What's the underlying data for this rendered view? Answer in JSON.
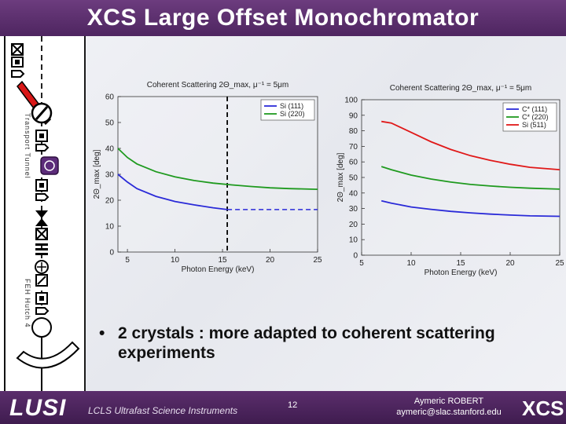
{
  "slide": {
    "title": "XCS Large Offset Monochromator",
    "bullet": "2 crystals : more adapted to coherent scattering experiments",
    "page_number": "12",
    "author_name": "Aymeric ROBERT",
    "author_email": "aymeric@slac.stanford.edu",
    "footer_logo": "LUSI",
    "footer_subtitle": "LCLS Ultrafast Science Instruments",
    "footer_right": "XCS",
    "sidebar_label_top": "Transport Tunnel",
    "sidebar_label_bottom": "FEH Hutch 4"
  },
  "chart_data": [
    {
      "type": "line",
      "title": "Coherent Scattering 2Θ_max, μ⁻¹ = 5μm",
      "xlabel": "Photon Energy (keV)",
      "ylabel": "2Θ_max [deg]",
      "xlim": [
        4,
        25
      ],
      "ylim": [
        0,
        60
      ],
      "xticks": [
        5,
        10,
        15,
        20,
        25
      ],
      "yticks": [
        0,
        10,
        20,
        30,
        40,
        50,
        60
      ],
      "legend_position": "top-right",
      "vline": {
        "x": 15.5,
        "style": "dashed",
        "color": "#000000"
      },
      "hline_dashed": {
        "y": 16.4,
        "x_from": 15.5,
        "x_to": 25,
        "color": "#2a2ad8"
      },
      "series": [
        {
          "name": "Si (111)",
          "color": "#2a2ad8",
          "x": [
            4,
            5,
            6,
            8,
            10,
            12,
            14,
            15.5
          ],
          "y": [
            30,
            27,
            24.5,
            21.5,
            19.5,
            18.2,
            17.1,
            16.4
          ]
        },
        {
          "name": "Si (220)",
          "color": "#1f9a1f",
          "x": [
            4,
            5,
            6,
            8,
            10,
            12,
            14,
            16,
            18,
            20,
            22,
            25
          ],
          "y": [
            40,
            36.5,
            34,
            31,
            29,
            27.6,
            26.6,
            25.9,
            25.3,
            24.8,
            24.5,
            24.2
          ]
        }
      ]
    },
    {
      "type": "line",
      "title": "Coherent Scattering 2Θ_max, μ⁻¹ = 5μm",
      "xlabel": "Photon Energy (keV)",
      "ylabel": "2Θ_max [deg]",
      "xlim": [
        5,
        25
      ],
      "ylim": [
        0,
        100
      ],
      "xticks": [
        5,
        10,
        15,
        20,
        25
      ],
      "yticks": [
        0,
        10,
        20,
        30,
        40,
        50,
        60,
        70,
        80,
        90,
        100
      ],
      "legend_position": "top-right",
      "series": [
        {
          "name": "C* (111)",
          "color": "#2a2ad8",
          "x": [
            7,
            8,
            10,
            12,
            14,
            16,
            18,
            20,
            22,
            25
          ],
          "y": [
            35,
            33.5,
            31,
            29.5,
            28.2,
            27.2,
            26.4,
            25.8,
            25.3,
            25
          ]
        },
        {
          "name": "C* (220)",
          "color": "#1f9a1f",
          "x": [
            7,
            8,
            10,
            12,
            14,
            16,
            18,
            20,
            22,
            25
          ],
          "y": [
            57,
            55,
            51.5,
            49,
            47,
            45.5,
            44.5,
            43.7,
            43.1,
            42.5
          ]
        },
        {
          "name": "Si (511)",
          "color": "#e01818",
          "x": [
            7,
            8,
            10,
            12,
            14,
            16,
            18,
            20,
            22,
            25
          ],
          "y": [
            86,
            85,
            79,
            73,
            68,
            64,
            61,
            58.5,
            56.5,
            55
          ]
        }
      ]
    }
  ]
}
